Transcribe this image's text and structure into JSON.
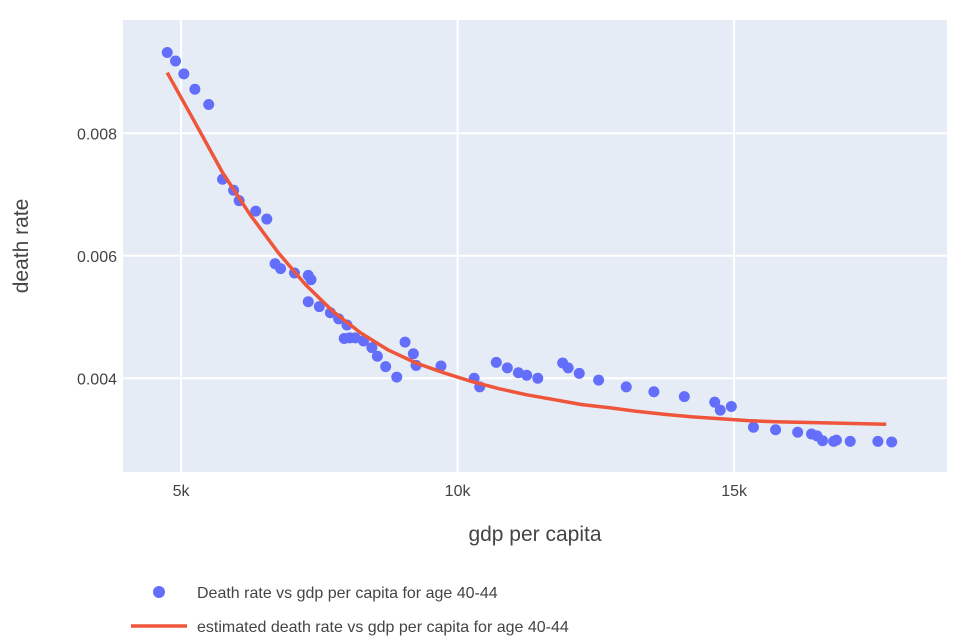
{
  "chart_data": {
    "type": "scatter",
    "xlabel": "gdp per capita",
    "ylabel": "death rate",
    "xlim": [
      3950,
      18850
    ],
    "ylim": [
      0.00247,
      0.00985
    ],
    "grid": true,
    "legend_position": "bottom-left",
    "xticks": [
      {
        "value": 5000,
        "label": "5k"
      },
      {
        "value": 10000,
        "label": "10k"
      },
      {
        "value": 15000,
        "label": "15k"
      }
    ],
    "yticks": [
      {
        "value": 0.004,
        "label": "0.004"
      },
      {
        "value": 0.006,
        "label": "0.006"
      },
      {
        "value": 0.008,
        "label": "0.008"
      }
    ],
    "series": [
      {
        "name": "Death rate vs gdp per capita for age 40-44",
        "kind": "scatter",
        "color": "#636efa",
        "x": [
          4750,
          4900,
          5050,
          5250,
          5500,
          5750,
          5950,
          6050,
          6350,
          6550,
          6700,
          6800,
          7050,
          7300,
          7350,
          7300,
          7500,
          7700,
          7850,
          7950,
          8050,
          8000,
          8150,
          8300,
          8450,
          8550,
          8700,
          8900,
          9050,
          9200,
          9250,
          9700,
          10300,
          10400,
          10700,
          10900,
          11100,
          11250,
          11450,
          11900,
          12000,
          12200,
          12550,
          13050,
          13550,
          14100,
          14650,
          14750,
          14950,
          15350,
          15750,
          16150,
          16400,
          16500,
          16600,
          16800,
          16850,
          17100,
          17600,
          17850
        ],
        "y": [
          0.00932,
          0.00918,
          0.00897,
          0.00872,
          0.00847,
          0.00725,
          0.00707,
          0.0069,
          0.00673,
          0.0066,
          0.00587,
          0.00579,
          0.00572,
          0.00568,
          0.00561,
          0.00525,
          0.00517,
          0.00507,
          0.00497,
          0.00465,
          0.00466,
          0.00487,
          0.00466,
          0.00461,
          0.0045,
          0.00436,
          0.00419,
          0.00402,
          0.00459,
          0.0044,
          0.00421,
          0.0042,
          0.004,
          0.00386,
          0.00426,
          0.00417,
          0.00409,
          0.00405,
          0.004,
          0.00425,
          0.00417,
          0.00408,
          0.00397,
          0.00386,
          0.00378,
          0.0037,
          0.00361,
          0.00348,
          0.00354,
          0.0032,
          0.00316,
          0.00312,
          0.00309,
          0.00306,
          0.00298,
          0.00297,
          0.00299,
          0.00297,
          0.00297,
          0.00296
        ]
      },
      {
        "name": "estimated death rate vs gdp per capita for age 40-44",
        "kind": "line",
        "color": "#ef553b",
        "x": [
          4750,
          5250,
          5750,
          6250,
          6750,
          7250,
          7750,
          8250,
          8750,
          9250,
          9750,
          10250,
          10750,
          11250,
          11750,
          12250,
          12750,
          13250,
          13750,
          14250,
          14750,
          15250,
          15750,
          16250,
          16750,
          17250,
          17750
        ],
        "y": [
          0.00899,
          0.00818,
          0.00736,
          0.00667,
          0.00606,
          0.00553,
          0.00509,
          0.00474,
          0.00446,
          0.00425,
          0.00409,
          0.00395,
          0.00383,
          0.00373,
          0.00365,
          0.00357,
          0.00352,
          0.00346,
          0.00341,
          0.00337,
          0.00334,
          0.00331,
          0.00329,
          0.00328,
          0.00327,
          0.00326,
          0.00325
        ]
      }
    ]
  }
}
